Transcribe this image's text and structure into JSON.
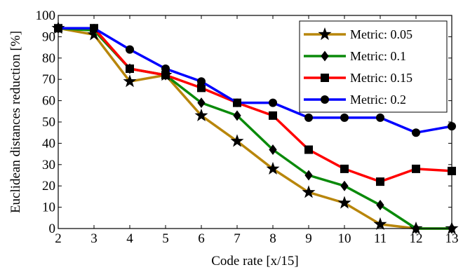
{
  "chart_data": {
    "type": "line",
    "xlabel": "Code rate [x/15]",
    "ylabel": "Euclidean distances reduction [%]",
    "xlim": [
      2,
      13
    ],
    "ylim": [
      0,
      100
    ],
    "x_ticks": [
      2,
      3,
      4,
      5,
      6,
      7,
      8,
      9,
      10,
      11,
      12,
      13
    ],
    "y_ticks": [
      0,
      10,
      20,
      30,
      40,
      50,
      60,
      70,
      80,
      90,
      100
    ],
    "grid": false,
    "legend_position": "top-right",
    "x": [
      2,
      3,
      4,
      5,
      6,
      7,
      8,
      9,
      10,
      11,
      12,
      13
    ],
    "series": [
      {
        "name": "Metric: 0.05",
        "color": "#b8860b",
        "marker": "star",
        "values": [
          94,
          91,
          69,
          72,
          53,
          41,
          28,
          17,
          12,
          2,
          0,
          0
        ]
      },
      {
        "name": "Metric: 0.1",
        "color": "#0a8a0a",
        "marker": "diamond",
        "values": [
          94,
          93,
          75,
          72,
          59,
          53,
          37,
          25,
          20,
          11,
          0,
          0
        ]
      },
      {
        "name": "Metric: 0.15",
        "color": "#ff0000",
        "marker": "square",
        "values": [
          94,
          94,
          75,
          72,
          66,
          59,
          53,
          37,
          28,
          22,
          28,
          27
        ]
      },
      {
        "name": "Metric: 0.2",
        "color": "#0000ff",
        "marker": "circle",
        "values": [
          94,
          94,
          84,
          75,
          69,
          59,
          59,
          52,
          52,
          52,
          45,
          48
        ]
      }
    ]
  }
}
